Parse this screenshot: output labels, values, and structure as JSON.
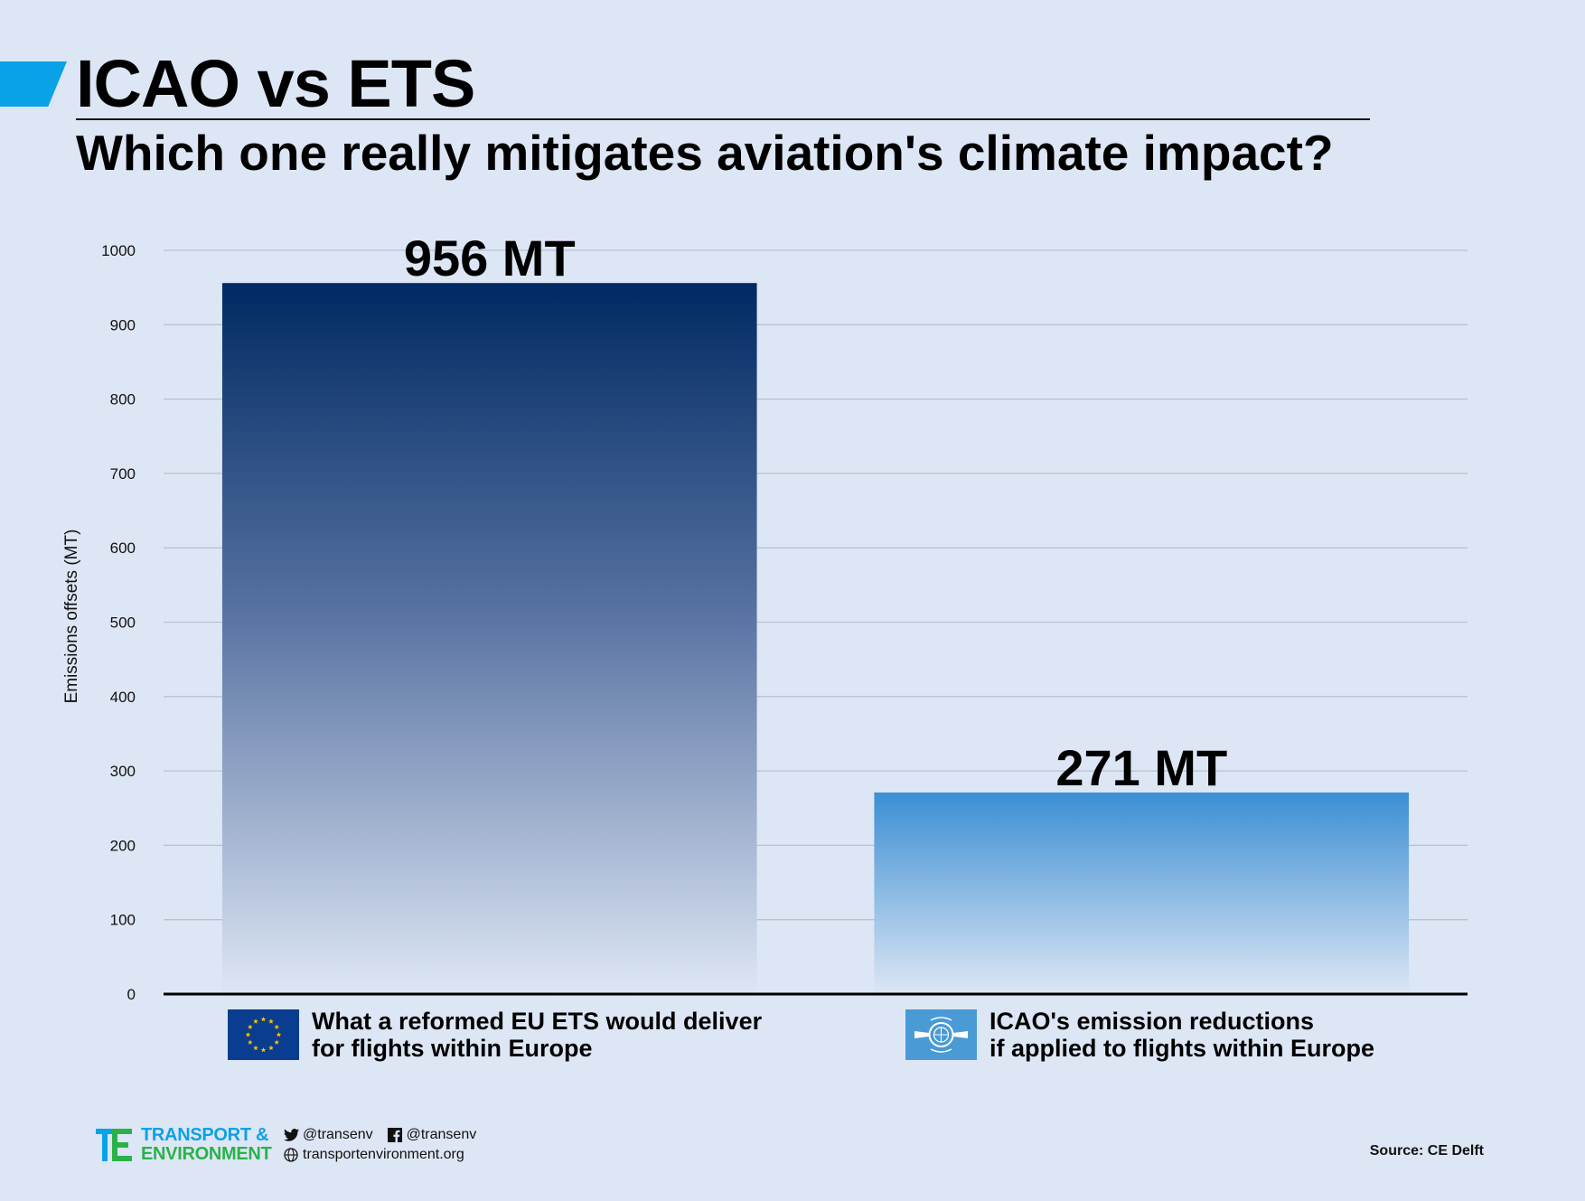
{
  "header": {
    "title": "ICAO vs ETS",
    "subtitle": "Which one really mitigates aviation's climate impact?"
  },
  "chart_data": {
    "type": "bar",
    "categories": [
      "What a reformed EU ETS would deliver for flights within Europe",
      "ICAO's emission reductions if applied to flights within Europe"
    ],
    "values": [
      956,
      271
    ],
    "data_labels": [
      "956 MT",
      "271 MT"
    ],
    "ylabel": "Emissions offsets (MT)",
    "ylim": [
      0,
      1000
    ],
    "yticks": [
      "0",
      "100",
      "200",
      "300",
      "400",
      "500",
      "600",
      "700",
      "800",
      "900",
      "1000"
    ],
    "grid": true,
    "colors": {
      "ets_top": "#002a63",
      "icao_top": "#3b8fd3",
      "grid": "#b8c1cf",
      "axis": "#000000"
    }
  },
  "legend": {
    "ets": {
      "line1": "What a reformed EU ETS would deliver",
      "line2": "for flights within Europe",
      "icon": "eu-flag-icon"
    },
    "icao": {
      "line1": "ICAO's emission reductions",
      "line2": "if applied to flights within Europe",
      "icon": "icao-emblem-icon"
    }
  },
  "footer": {
    "logo_line1": "TRANSPORT &",
    "logo_line2": "ENVIRONMENT",
    "twitter": "@transenv",
    "facebook": "@transenv",
    "website": "transportenvironment.org",
    "source": "Source: CE Delft"
  }
}
